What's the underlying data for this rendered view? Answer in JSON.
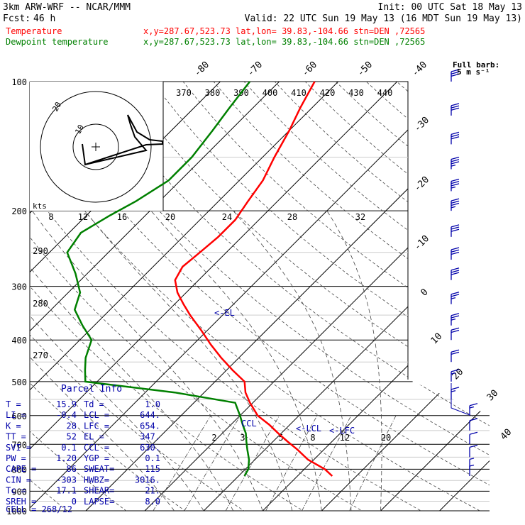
{
  "header": {
    "model": "3km ARW-WRF -- NCAR/MMM",
    "init": "Init: 00 UTC Sat 18 May 13",
    "fcst_label": "Fcst:",
    "fcst_value": "46 h",
    "valid": "Valid: 22 UTC Sun 19 May 13 (16 MDT Sun 19 May 13)",
    "temp_label": "Temperature",
    "temp_loc": "x,y=287.67,523.73   lat,lon= 39.83,-104.66   stn=DEN ,72565",
    "dew_label": "Dewpoint temperature",
    "dew_loc": "x,y=287.67,523.73   lat,lon= 39.83,-104.66   stn=DEN ,72565",
    "barb_legend_1": "Full barb:",
    "barb_legend_2": "5 m s⁻¹",
    "el_marker": "<-EL",
    "ccl_marker": "CCL",
    "lcl_marker": "<-LCL",
    "lfc_marker": "<-LFC"
  },
  "parcel_info": {
    "title": "Parcel Info",
    "rows": [
      {
        "k1": "T    =",
        "v1": "15.9",
        "k2": "Td =",
        "v2": "1.0"
      },
      {
        "k1": "LI   =",
        "v1": "-0.4",
        "k2": "LCL =",
        "v2": "644."
      },
      {
        "k1": "K    =",
        "v1": "28",
        "k2": "LFC =",
        "v2": "654."
      },
      {
        "k1": "TT   =",
        "v1": "52",
        "k2": "EL   =",
        "v2": "347."
      },
      {
        "k1": "SVI  =",
        "v1": "0.1",
        "k2": "CCL =",
        "v2": "630."
      },
      {
        "k1": "PW   =",
        "v1": "1.20",
        "k2": "YGP =",
        "v2": "0.1"
      },
      {
        "k1": "CAPE =",
        "v1": "86",
        "k2": "SWEAT=",
        "v2": "115"
      },
      {
        "k1": "CIN  =",
        "v1": "-303",
        "k2": "HWBZ=",
        "v2": "3016."
      },
      {
        "k1": "Tc   =",
        "v1": "17.1",
        "k2": "SHEAR=",
        "v2": "21."
      },
      {
        "k1": "SREH =",
        "v1": "0",
        "k2": "LAPSE=",
        "v2": "8.0"
      }
    ],
    "cell": "CELL = 268/12"
  },
  "hodograph": {
    "speed_unit": "kts",
    "speed_labels": [
      "10",
      "20"
    ],
    "tick_labels": [
      "8",
      "12",
      "16",
      "20",
      "24",
      "28",
      "32"
    ]
  },
  "colors": {
    "temperature": "#ff0000",
    "dewpoint": "#008000",
    "frame": "#000000",
    "parcel_text": "#0000aa",
    "barbs": "#0000aa",
    "aux_lines": "#444444"
  },
  "chart_data": {
    "type": "skew-t log-p",
    "y_axis": {
      "unit": "hPa",
      "scale": "log",
      "ticks": [
        100,
        200,
        300,
        400,
        500,
        600,
        700,
        800,
        900,
        1000
      ],
      "range": [
        1000,
        100
      ]
    },
    "isotherm_labels": [
      "-80",
      "-70",
      "-60",
      "-50",
      "-40",
      "-30",
      "-20",
      "-10",
      "0",
      "10",
      "20",
      "30",
      "40"
    ],
    "theta_labels": [
      "370",
      "380",
      "390",
      "400",
      "410",
      "420",
      "430",
      "440"
    ],
    "theta_side_labels": [
      "290",
      "280",
      "270"
    ],
    "mixing_ratio_labels": [
      "2",
      "3",
      "5",
      "8",
      "12",
      "20"
    ],
    "temperature_profile": {
      "p": [
        830,
        800,
        760,
        720,
        690,
        660,
        630,
        600,
        560,
        530,
        500,
        470,
        440,
        410,
        380,
        350,
        330,
        310,
        290,
        270,
        250,
        230,
        210,
        190,
        170,
        150,
        130,
        115,
        100
      ],
      "t": [
        15.9,
        13.5,
        9.0,
        5.5,
        2.5,
        -0.5,
        -3.5,
        -7,
        -10.5,
        -13,
        -15,
        -19,
        -23,
        -27,
        -31,
        -35.5,
        -38.5,
        -41.5,
        -44,
        -45,
        -44.5,
        -44,
        -44,
        -45,
        -46,
        -48,
        -50,
        -52,
        -54
      ]
    },
    "dewpoint_profile": {
      "p": [
        830,
        800,
        760,
        720,
        690,
        660,
        630,
        600,
        560,
        530,
        500,
        470,
        440,
        400,
        370,
        340,
        310,
        280,
        250,
        225,
        205,
        190,
        170,
        150,
        130,
        115,
        100
      ],
      "td": [
        1.0,
        0.5,
        -1,
        -3,
        -4.5,
        -6,
        -8,
        -10,
        -13,
        -25,
        -42,
        -44,
        -46,
        -48,
        -52,
        -56,
        -58,
        -62,
        -67,
        -68,
        -66,
        -64,
        -62,
        -62,
        -63,
        -64,
        -65
      ]
    },
    "parcel_markers": {
      "EL_hPa": 347,
      "LCL_hPa": 644,
      "LFC_hPa": 654,
      "CCL_hPa": 630
    },
    "wind_barbs": {
      "p": [
        100,
        120,
        140,
        160,
        180,
        200,
        230,
        260,
        290,
        330,
        370,
        400,
        450,
        500,
        550,
        600,
        650,
        700,
        750,
        800,
        830
      ],
      "speed_ms": [
        15,
        15,
        15,
        17.5,
        17.5,
        17.5,
        15,
        15,
        15,
        12.5,
        12.5,
        10,
        10,
        7.5,
        7.5,
        7.5,
        5,
        5,
        5,
        2.5,
        2.5
      ],
      "direction_deg": [
        270,
        270,
        275,
        275,
        270,
        270,
        265,
        265,
        270,
        270,
        275,
        275,
        280,
        280,
        285,
        290,
        300,
        310,
        330,
        10,
        30
      ]
    },
    "hodograph_trace": {
      "u_kts": [
        0,
        -1.5,
        -1,
        5,
        7,
        12,
        14,
        14,
        16
      ],
      "v_kts": [
        0,
        -8,
        -4,
        -2,
        4,
        4,
        10,
        14,
        13
      ]
    }
  }
}
